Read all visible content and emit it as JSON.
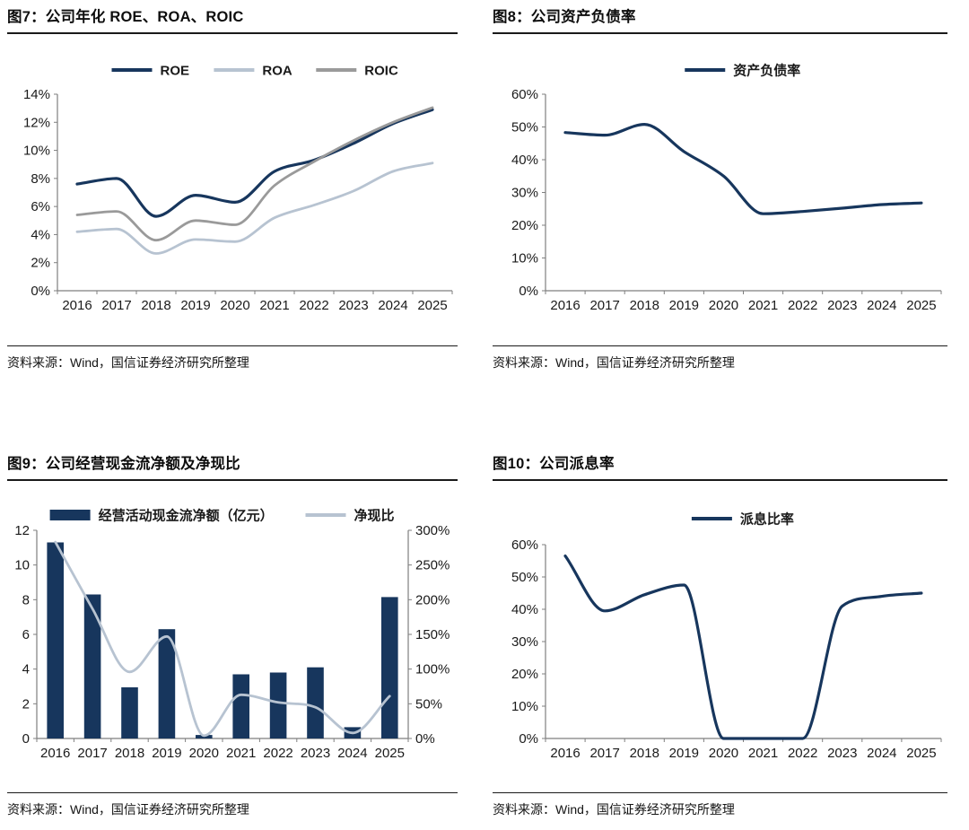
{
  "colors": {
    "navy": "#17365d",
    "light_blue_gray": "#b7c3d1",
    "gray": "#9a9a9a",
    "axis_line": "#7f7f7f",
    "tick_text": "#1a1a1a",
    "rule_dark": "#1a1a1a"
  },
  "chart_data": [
    {
      "id": "fig7",
      "type": "line",
      "title": "图7：公司年化 ROE、ROA、ROIC",
      "source": "资料来源：Wind，国信证券经济研究所整理",
      "legend_position": "top",
      "grid": false,
      "categories": [
        "2016",
        "2017",
        "2018",
        "2019",
        "2020",
        "2021",
        "2022",
        "2023",
        "2024",
        "2025"
      ],
      "y_axis": {
        "min": 0,
        "max": 14,
        "step": 2,
        "format": "percent"
      },
      "series": [
        {
          "name": "ROE",
          "kind": "line",
          "axis": "left",
          "color": "#17365d",
          "values": [
            7.6,
            8.0,
            5.3,
            6.8,
            6.3,
            8.5,
            9.3,
            10.5,
            11.9,
            12.9
          ]
        },
        {
          "name": "ROA",
          "kind": "line",
          "axis": "left",
          "color": "#b7c3d1",
          "values": [
            4.2,
            4.4,
            2.65,
            3.65,
            3.5,
            5.2,
            6.1,
            7.1,
            8.5,
            9.1
          ]
        },
        {
          "name": "ROIC",
          "kind": "line",
          "axis": "left",
          "color": "#9a9a9a",
          "values": [
            5.4,
            5.65,
            3.6,
            5.0,
            4.7,
            7.5,
            9.2,
            10.7,
            12.0,
            13.05
          ]
        }
      ]
    },
    {
      "id": "fig8",
      "type": "line",
      "title": "图8：公司资产负债率",
      "source": "资料来源：Wind，国信证券经济研究所整理",
      "legend_position": "top",
      "grid": false,
      "categories": [
        "2016",
        "2017",
        "2018",
        "2019",
        "2020",
        "2021",
        "2022",
        "2023",
        "2024",
        "2025"
      ],
      "y_axis": {
        "min": 0,
        "max": 60,
        "step": 10,
        "format": "percent"
      },
      "series": [
        {
          "name": "资产负债率",
          "kind": "line",
          "axis": "left",
          "color": "#17365d",
          "values": [
            48.3,
            47.5,
            50.8,
            42.5,
            35.0,
            23.5,
            24.2,
            25.2,
            26.3,
            26.8
          ]
        }
      ]
    },
    {
      "id": "fig9",
      "type": "bar+line",
      "title": "图9：公司经营现金流净额及净现比",
      "source": "资料来源：Wind，国信证券经济研究所整理",
      "legend_position": "top",
      "grid": false,
      "categories": [
        "2016",
        "2017",
        "2018",
        "2019",
        "2020",
        "2021",
        "2022",
        "2023",
        "2024",
        "2025"
      ],
      "y_axis": {
        "min": 0,
        "max": 12,
        "step": 2,
        "format": "number"
      },
      "y_axis_right": {
        "min": 0,
        "max": 300,
        "step": 50,
        "format": "percent"
      },
      "series": [
        {
          "name": "经营活动现金流净额（亿元）",
          "kind": "bar",
          "axis": "left",
          "color": "#17365d",
          "values": [
            11.3,
            8.3,
            2.95,
            6.3,
            0.2,
            3.7,
            3.8,
            4.1,
            0.65,
            8.15
          ]
        },
        {
          "name": "净现比",
          "kind": "line",
          "axis": "right",
          "color": "#b7c3d1",
          "values": [
            283,
            187,
            96,
            147,
            4,
            63,
            52,
            45,
            8,
            61
          ]
        }
      ]
    },
    {
      "id": "fig10",
      "type": "line",
      "title": "图10：公司派息率",
      "source": "资料来源：Wind，国信证券经济研究所整理",
      "legend_position": "top",
      "grid": false,
      "categories": [
        "2016",
        "2017",
        "2018",
        "2019",
        "2020",
        "2021",
        "2022",
        "2023",
        "2024",
        "2025"
      ],
      "y_axis": {
        "min": 0,
        "max": 60,
        "step": 10,
        "format": "percent"
      },
      "series": [
        {
          "name": "派息比率",
          "kind": "line",
          "axis": "left",
          "color": "#17365d",
          "values": [
            56.5,
            39.5,
            44.5,
            47.5,
            0,
            0,
            0,
            41.0,
            44.0,
            45.0
          ]
        }
      ]
    }
  ]
}
